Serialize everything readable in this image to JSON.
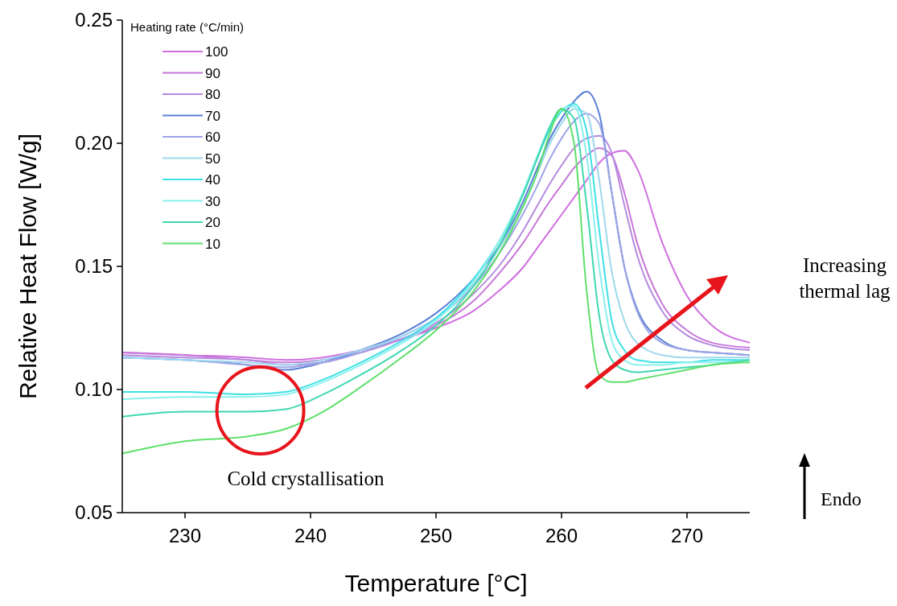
{
  "chart_data": {
    "type": "line",
    "xlabel": "Temperature [°C]",
    "ylabel": "Relative Heat Flow [W/g]",
    "legend_title": "Heating rate (°C/min)",
    "legend": "top left",
    "xlim": [
      225,
      275
    ],
    "ylim": [
      0.05,
      0.25
    ],
    "xticks": [
      230,
      240,
      250,
      260,
      270
    ],
    "yticks": [
      0.05,
      {
        "value": 0.1,
        "label": "0.10"
      },
      0.15,
      {
        "value": 0.2,
        "label": "0.20"
      },
      0.25
    ],
    "x": [
      225,
      230,
      235,
      238,
      241,
      244,
      247,
      250,
      253,
      255,
      257,
      258,
      259,
      260,
      261,
      262,
      263,
      264,
      265,
      266,
      268,
      270,
      272,
      275
    ],
    "series": [
      {
        "name": "100",
        "color": "#d070e0",
        "values": [
          0.115,
          0.114,
          0.113,
          0.112,
          0.113,
          0.116,
          0.12,
          0.125,
          0.132,
          0.14,
          0.15,
          0.157,
          0.164,
          0.171,
          0.178,
          0.185,
          0.192,
          0.196,
          0.197,
          0.19,
          0.16,
          0.138,
          0.126,
          0.119
        ]
      },
      {
        "name": "90",
        "color": "#c878d8",
        "values": [
          0.115,
          0.114,
          0.112,
          0.111,
          0.112,
          0.115,
          0.12,
          0.126,
          0.136,
          0.147,
          0.16,
          0.168,
          0.176,
          0.183,
          0.19,
          0.195,
          0.198,
          0.195,
          0.18,
          0.16,
          0.135,
          0.124,
          0.119,
          0.117
        ]
      },
      {
        "name": "80",
        "color": "#b58ae0",
        "values": [
          0.114,
          0.113,
          0.112,
          0.11,
          0.111,
          0.115,
          0.12,
          0.127,
          0.139,
          0.15,
          0.165,
          0.174,
          0.183,
          0.191,
          0.198,
          0.202,
          0.203,
          0.196,
          0.175,
          0.155,
          0.132,
          0.122,
          0.118,
          0.116
        ]
      },
      {
        "name": "70",
        "color": "#5a7fd6",
        "values": [
          0.113,
          0.112,
          0.11,
          0.108,
          0.111,
          0.116,
          0.122,
          0.131,
          0.145,
          0.158,
          0.177,
          0.189,
          0.201,
          0.21,
          0.217,
          0.221,
          0.212,
          0.18,
          0.15,
          0.133,
          0.12,
          0.116,
          0.115,
          0.114
        ]
      },
      {
        "name": "60",
        "color": "#9fa6e6",
        "values": [
          0.113,
          0.112,
          0.11,
          0.109,
          0.111,
          0.115,
          0.121,
          0.129,
          0.142,
          0.155,
          0.172,
          0.182,
          0.193,
          0.202,
          0.209,
          0.212,
          0.208,
          0.18,
          0.15,
          0.132,
          0.119,
          0.116,
          0.115,
          0.114
        ]
      },
      {
        "name": "50",
        "color": "#9fd8ec",
        "values": [
          0.113,
          0.112,
          0.111,
          0.11,
          0.112,
          0.116,
          0.121,
          0.129,
          0.143,
          0.157,
          0.175,
          0.187,
          0.199,
          0.208,
          0.214,
          0.212,
          0.185,
          0.148,
          0.128,
          0.119,
          0.114,
          0.113,
          0.113,
          0.113
        ]
      },
      {
        "name": "40",
        "color": "#3fe0e6",
        "values": [
          0.099,
          0.099,
          0.098,
          0.099,
          0.104,
          0.111,
          0.119,
          0.129,
          0.145,
          0.16,
          0.18,
          0.193,
          0.205,
          0.213,
          0.216,
          0.205,
          0.165,
          0.128,
          0.116,
          0.112,
          0.111,
          0.111,
          0.112,
          0.112
        ]
      },
      {
        "name": "30",
        "color": "#8af0ee",
        "values": [
          0.096,
          0.097,
          0.097,
          0.098,
          0.103,
          0.11,
          0.118,
          0.128,
          0.144,
          0.16,
          0.181,
          0.194,
          0.206,
          0.214,
          0.215,
          0.195,
          0.15,
          0.12,
          0.112,
          0.11,
          0.11,
          0.111,
          0.111,
          0.112
        ]
      },
      {
        "name": "20",
        "color": "#40d8b0",
        "values": [
          0.089,
          0.091,
          0.091,
          0.092,
          0.098,
          0.106,
          0.115,
          0.126,
          0.142,
          0.158,
          0.18,
          0.193,
          0.206,
          0.214,
          0.21,
          0.175,
          0.13,
          0.112,
          0.108,
          0.107,
          0.108,
          0.109,
          0.11,
          0.112
        ]
      },
      {
        "name": "10",
        "color": "#5fe06a",
        "values": [
          0.074,
          0.079,
          0.081,
          0.084,
          0.091,
          0.101,
          0.112,
          0.124,
          0.14,
          0.155,
          0.175,
          0.187,
          0.203,
          0.214,
          0.2,
          0.14,
          0.106,
          0.103,
          0.103,
          0.104,
          0.106,
          0.108,
          0.11,
          0.111
        ]
      }
    ],
    "annotations": [
      "Cold crystallisation",
      "Increasing thermal lag",
      "Endo"
    ]
  }
}
